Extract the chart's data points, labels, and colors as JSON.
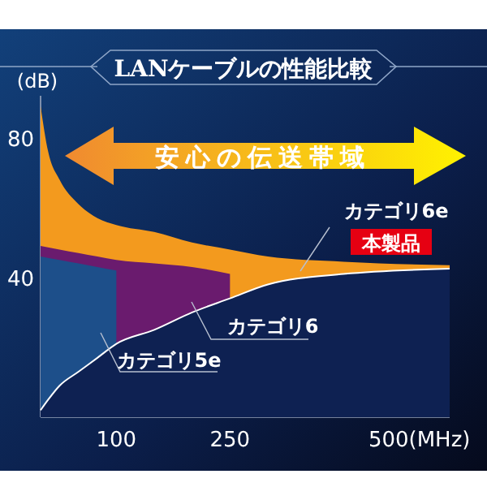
{
  "chart_data": {
    "type": "area",
    "title": "LANケーブルの性能比較",
    "ylabel": "(dB)",
    "xlim": [
      0,
      540
    ],
    "xticks": [
      100,
      250,
      {
        "value": 500,
        "label": "500(MHz)"
      }
    ],
    "ylim": [
      0,
      92
    ],
    "yticks": [
      40,
      80
    ],
    "grid": false,
    "legend": false,
    "annotations": [
      "安心の伝送帯域",
      "本製品"
    ],
    "series": [
      {
        "name": "カテゴリ6e",
        "color": "#f39a1e",
        "x": [
          0,
          10,
          25,
          50,
          75,
          100,
          150,
          200,
          250,
          300,
          400,
          540
        ],
        "values": [
          89,
          76,
          68,
          61,
          57,
          55,
          53,
          50,
          48,
          46,
          44.5,
          43.5
        ]
      },
      {
        "name": "カテゴリ6",
        "color": "#6a1b6e",
        "x": [
          0,
          25,
          50,
          75,
          100,
          150,
          200,
          250
        ],
        "values": [
          49,
          48,
          47,
          46,
          45,
          44,
          43,
          41
        ]
      },
      {
        "name": "カテゴリ5e",
        "color": "#1d4f8a",
        "x": [
          0,
          25,
          50,
          75,
          100
        ],
        "values": [
          46,
          45,
          44,
          43,
          42
        ]
      },
      {
        "color": "#0e2152",
        "x": [
          0,
          10,
          25,
          50,
          75,
          100,
          150,
          200,
          250,
          300,
          400,
          540
        ],
        "values": [
          2,
          5,
          9,
          13,
          17,
          21,
          25,
          30,
          34,
          38,
          41,
          42.5
        ]
      }
    ]
  }
}
